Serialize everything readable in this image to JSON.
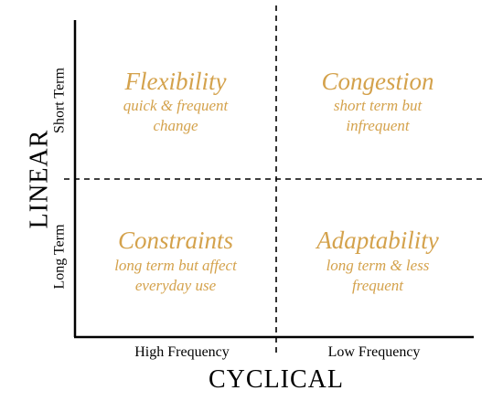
{
  "axes": {
    "y_title": "LINEAR",
    "x_title": "CYCLICAL",
    "y_labels": {
      "top": "Short Term",
      "bottom": "Long Term"
    },
    "x_labels": {
      "left": "High Frequency",
      "right": "Low Frequency"
    }
  },
  "quadrants": {
    "top_left": {
      "title": "Flexibility",
      "line1": "quick & frequent",
      "line2": "change"
    },
    "top_right": {
      "title": "Congestion",
      "line1": "short term but",
      "line2": "infrequent"
    },
    "bottom_left": {
      "title": "Constraints",
      "line1": "long term but affect",
      "line2": "everyday use"
    },
    "bottom_right": {
      "title": "Adaptability",
      "line1": "long term & less",
      "line2": "frequent"
    }
  },
  "colors": {
    "quadrant_text": "#D4A24C",
    "axis": "#000000"
  }
}
